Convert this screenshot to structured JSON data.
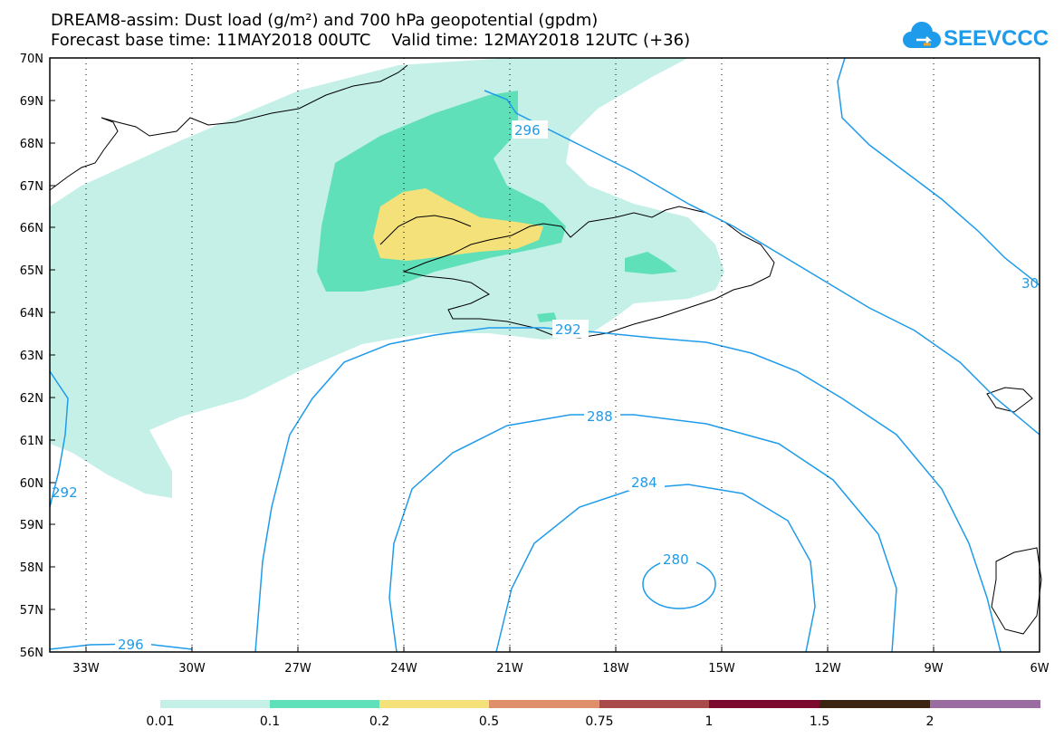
{
  "header": {
    "title_line1": "DREAM8-assim: Dust load (g/m²) and 700 hPa geopotential (gpdm)",
    "title_line2": "Forecast base time: 11MAY2018 00UTC    Valid time: 12MAY2018 12UTC (+36)"
  },
  "logo": {
    "text": "SEEVCCC",
    "color": "#1e9bea"
  },
  "map": {
    "lat_labels": [
      "70N",
      "69N",
      "68N",
      "67N",
      "66N",
      "65N",
      "64N",
      "63N",
      "62N",
      "61N",
      "60N",
      "59N",
      "58N",
      "57N",
      "56N"
    ],
    "lon_labels": [
      "33W",
      "30W",
      "27W",
      "24W",
      "21W",
      "18W",
      "15W",
      "12W",
      "9W",
      "6W"
    ],
    "contour_labels": [
      "296",
      "292",
      "288",
      "284",
      "280",
      "296",
      "292",
      "30"
    ],
    "colors": {
      "contour": "#1e9bea",
      "dust_0_01": "#c5f0e8",
      "dust_0_1": "#5fe0b8",
      "dust_0_2": "#f5e17a",
      "coast": "#000000"
    }
  },
  "colorbar": {
    "labels": [
      "0.01",
      "0.1",
      "0.2",
      "0.5",
      "0.75",
      "1",
      "1.5",
      "2"
    ],
    "colors": [
      "#c5f0e8",
      "#5fe0b8",
      "#f5e17a",
      "#e08f6b",
      "#a94b4b",
      "#7a0a2e",
      "#3c2412",
      "#9a6da0"
    ]
  }
}
